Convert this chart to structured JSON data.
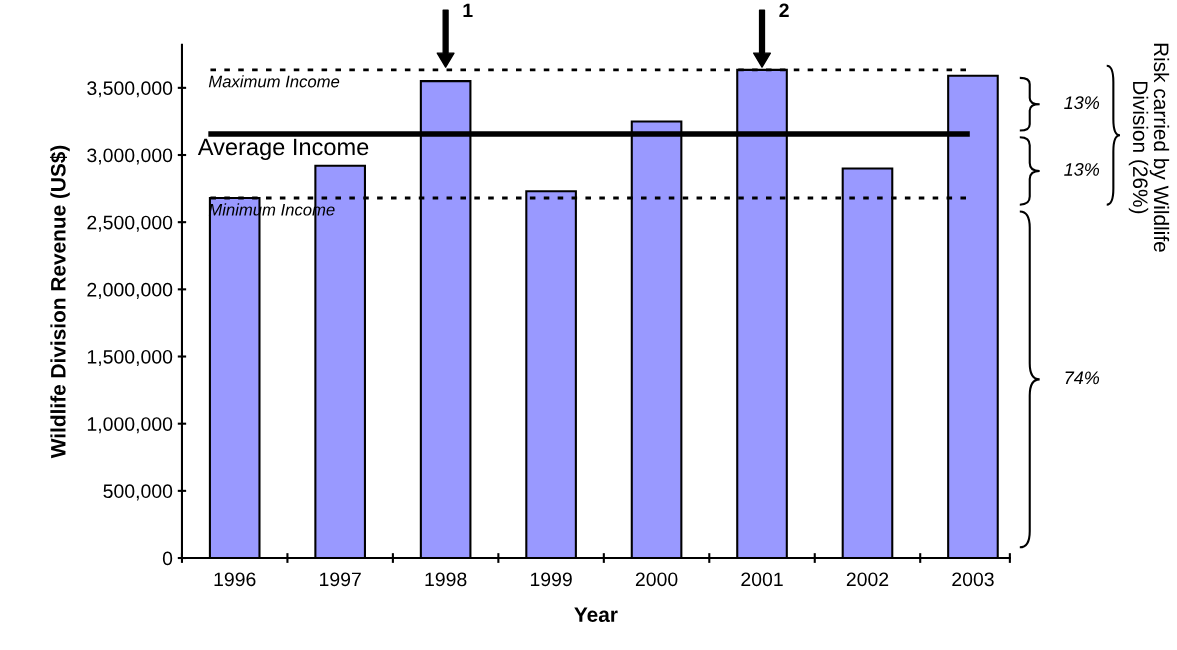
{
  "chart_data": {
    "type": "bar",
    "xlabel": "Year",
    "ylabel": "Wildlife Division Revenue (US$)",
    "categories": [
      "1996",
      "1997",
      "1998",
      "1999",
      "2000",
      "2001",
      "2002",
      "2003"
    ],
    "values": [
      2680000,
      2920000,
      3550000,
      2730000,
      3250000,
      3634000,
      2900000,
      3590000
    ],
    "color": "#9999ff",
    "ylim": [
      0,
      3820000
    ],
    "yticks": [
      {
        "value": 0,
        "label": "0"
      },
      {
        "value": 500000,
        "label": "500,000"
      },
      {
        "value": 1000000,
        "label": "1,000,000"
      },
      {
        "value": 1500000,
        "label": "1,500,000"
      },
      {
        "value": 2000000,
        "label": "2,000,000"
      },
      {
        "value": 2500000,
        "label": "2,500,000"
      },
      {
        "value": 3000000,
        "label": "3,000,000"
      },
      {
        "value": 3500000,
        "label": "3,500,000"
      }
    ],
    "grid": false,
    "legend": false,
    "ref_lines": [
      {
        "axis": "y",
        "value": 3634000,
        "label": "Maximum Income",
        "line_style": "dotted",
        "color": "#000000"
      },
      {
        "axis": "y",
        "value": 3157000,
        "label": "Average Income",
        "line_style": "solid",
        "color": "#000000"
      },
      {
        "axis": "y",
        "value": 2680000,
        "label": "Minimum Income",
        "line_style": "dotted",
        "color": "#000000"
      }
    ],
    "annotations": [
      {
        "text": "1",
        "x": "1998",
        "y": 3634000
      },
      {
        "text": "2",
        "x": "2001",
        "y": 3634000
      },
      "13%",
      "13%",
      "74%",
      "Risk carried by Wildlife Division (26%)"
    ]
  }
}
